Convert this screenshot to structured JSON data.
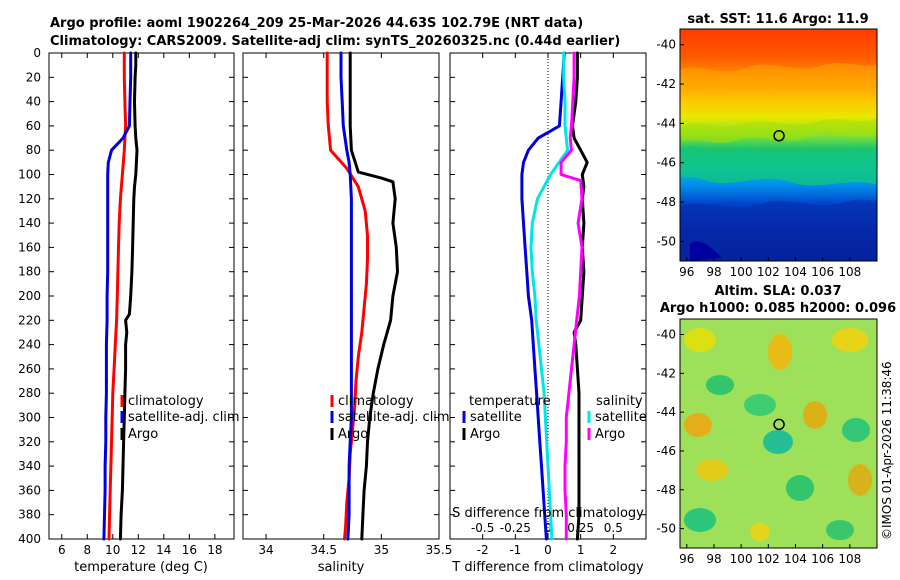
{
  "figure": {
    "title_line1": "Argo profile: aoml 1902264_209 25-Mar-2026 44.63S 102.79E (NRT data)",
    "title_line2": "Climatology: CARS2009. Satellite-adj clim: synTS_20260325.nc (0.44d earlier)",
    "copyright": "©IMOS 01-Apr-2026 11:38:46"
  },
  "colors": {
    "climatology": "#ff0000",
    "satellite": "#0000dd",
    "argo": "#000000",
    "sat_salinity": "#00e5e5",
    "argo_salinity": "#ff00ff",
    "frame": "#000000"
  },
  "legends": {
    "temperature_panel": [
      "climatology",
      "satellite-adj. clim",
      "Argo"
    ],
    "salinity_panel": [
      "climatology",
      "satellite-adj. clim",
      "Argo"
    ],
    "difference_panel": {
      "temperature_header": "temperature",
      "salinity_header": "salinity",
      "temperature_items": [
        "satellite",
        "Argo"
      ],
      "salinity_items": [
        "satellite",
        "Argo"
      ]
    }
  },
  "maps": {
    "sst_title": "sat. SST: 11.6 Argo: 11.9",
    "sla_title_line1": "Altim. SLA: 0.037",
    "sla_title_line2": "Argo h1000: 0.085 h2000: 0.096",
    "lon_ticks": [
      "96",
      "98",
      "100",
      "102",
      "104",
      "106",
      "108"
    ],
    "lat_ticks": [
      "-40",
      "-42",
      "-44",
      "-46",
      "-48",
      "-50"
    ],
    "lon_range": [
      95.5,
      110
    ],
    "lat_range": [
      -51,
      -39.2
    ],
    "float_position": {
      "lon": 102.79,
      "lat": -44.63
    }
  },
  "chart_data": [
    {
      "type": "line",
      "panel": "temperature",
      "xlabel": "temperature (deg C)",
      "ylabel": "",
      "xlim": [
        5,
        19.5
      ],
      "ylim": [
        400,
        0
      ],
      "x_ticks": [
        6,
        8,
        10,
        12,
        14,
        16,
        18
      ],
      "y_ticks": [
        0,
        20,
        40,
        60,
        80,
        100,
        120,
        140,
        160,
        180,
        200,
        220,
        240,
        260,
        280,
        300,
        320,
        340,
        360,
        380,
        400
      ],
      "series": [
        {
          "name": "climatology",
          "color": "#ff0000",
          "points": [
            [
              10.9,
              0
            ],
            [
              10.9,
              20
            ],
            [
              10.95,
              40
            ],
            [
              11.0,
              60
            ],
            [
              10.9,
              80
            ],
            [
              10.75,
              100
            ],
            [
              10.6,
              120
            ],
            [
              10.5,
              140
            ],
            [
              10.45,
              160
            ],
            [
              10.4,
              180
            ],
            [
              10.35,
              200
            ],
            [
              10.3,
              220
            ],
            [
              10.2,
              240
            ],
            [
              10.1,
              260
            ],
            [
              10.0,
              280
            ],
            [
              9.95,
              300
            ],
            [
              9.9,
              320
            ],
            [
              9.85,
              340
            ],
            [
              9.8,
              360
            ],
            [
              9.75,
              380
            ],
            [
              9.7,
              400
            ]
          ]
        },
        {
          "name": "satellite-adj. clim",
          "color": "#0000dd",
          "points": [
            [
              11.4,
              0
            ],
            [
              11.4,
              20
            ],
            [
              11.35,
              40
            ],
            [
              11.3,
              60
            ],
            [
              10.8,
              70
            ],
            [
              9.9,
              80
            ],
            [
              9.65,
              90
            ],
            [
              9.6,
              100
            ],
            [
              9.6,
              120
            ],
            [
              9.6,
              140
            ],
            [
              9.6,
              160
            ],
            [
              9.6,
              180
            ],
            [
              9.55,
              200
            ],
            [
              9.55,
              220
            ],
            [
              9.5,
              240
            ],
            [
              9.5,
              260
            ],
            [
              9.5,
              280
            ],
            [
              9.45,
              300
            ],
            [
              9.45,
              320
            ],
            [
              9.4,
              340
            ],
            [
              9.4,
              360
            ],
            [
              9.35,
              380
            ],
            [
              9.3,
              400
            ]
          ]
        },
        {
          "name": "Argo",
          "color": "#000000",
          "points": [
            [
              11.8,
              0
            ],
            [
              11.8,
              10
            ],
            [
              11.75,
              20
            ],
            [
              11.7,
              40
            ],
            [
              11.75,
              60
            ],
            [
              11.8,
              70
            ],
            [
              11.9,
              80
            ],
            [
              11.85,
              90
            ],
            [
              11.8,
              100
            ],
            [
              11.7,
              110
            ],
            [
              11.65,
              120
            ],
            [
              11.6,
              140
            ],
            [
              11.55,
              160
            ],
            [
              11.5,
              180
            ],
            [
              11.4,
              200
            ],
            [
              11.3,
              215
            ],
            [
              11.0,
              220
            ],
            [
              11.1,
              230
            ],
            [
              11.0,
              240
            ],
            [
              11.0,
              260
            ],
            [
              10.95,
              280
            ],
            [
              10.9,
              300
            ],
            [
              10.85,
              320
            ],
            [
              10.8,
              340
            ],
            [
              10.75,
              360
            ],
            [
              10.65,
              380
            ],
            [
              10.6,
              400
            ]
          ]
        }
      ]
    },
    {
      "type": "line",
      "panel": "salinity",
      "xlabel": "salinity",
      "ylabel": "",
      "xlim": [
        33.8,
        35.5
      ],
      "ylim": [
        400,
        0
      ],
      "x_ticks": [
        34,
        34.5,
        35,
        35.5
      ],
      "series": [
        {
          "name": "climatology",
          "color": "#ff0000",
          "points": [
            [
              34.53,
              0
            ],
            [
              34.53,
              20
            ],
            [
              34.53,
              40
            ],
            [
              34.54,
              60
            ],
            [
              34.56,
              80
            ],
            [
              34.7,
              95
            ],
            [
              34.8,
              110
            ],
            [
              34.86,
              130
            ],
            [
              34.88,
              150
            ],
            [
              34.88,
              170
            ],
            [
              34.87,
              190
            ],
            [
              34.85,
              210
            ],
            [
              34.83,
              230
            ],
            [
              34.8,
              250
            ],
            [
              34.78,
              270
            ],
            [
              34.77,
              290
            ],
            [
              34.75,
              310
            ],
            [
              34.73,
              330
            ],
            [
              34.72,
              350
            ],
            [
              34.7,
              370
            ],
            [
              34.69,
              390
            ],
            [
              34.68,
              400
            ]
          ]
        },
        {
          "name": "satellite-adj. clim",
          "color": "#0000dd",
          "points": [
            [
              34.65,
              0
            ],
            [
              34.65,
              20
            ],
            [
              34.66,
              40
            ],
            [
              34.67,
              60
            ],
            [
              34.7,
              80
            ],
            [
              34.72,
              90
            ],
            [
              34.73,
              100
            ],
            [
              34.74,
              120
            ],
            [
              34.74,
              140
            ],
            [
              34.74,
              160
            ],
            [
              34.74,
              180
            ],
            [
              34.74,
              200
            ],
            [
              34.74,
              220
            ],
            [
              34.74,
              240
            ],
            [
              34.74,
              260
            ],
            [
              34.74,
              280
            ],
            [
              34.74,
              300
            ],
            [
              34.73,
              320
            ],
            [
              34.72,
              340
            ],
            [
              34.72,
              360
            ],
            [
              34.72,
              380
            ],
            [
              34.71,
              400
            ]
          ]
        },
        {
          "name": "Argo",
          "color": "#000000",
          "points": [
            [
              34.73,
              0
            ],
            [
              34.73,
              20
            ],
            [
              34.73,
              40
            ],
            [
              34.73,
              60
            ],
            [
              34.74,
              80
            ],
            [
              34.8,
              98
            ],
            [
              35.0,
              103
            ],
            [
              35.1,
              106
            ],
            [
              35.12,
              120
            ],
            [
              35.1,
              140
            ],
            [
              35.13,
              160
            ],
            [
              35.14,
              180
            ],
            [
              35.1,
              200
            ],
            [
              35.08,
              220
            ],
            [
              35.02,
              240
            ],
            [
              34.97,
              260
            ],
            [
              34.93,
              280
            ],
            [
              34.9,
              300
            ],
            [
              34.88,
              320
            ],
            [
              34.87,
              340
            ],
            [
              34.85,
              360
            ],
            [
              34.84,
              380
            ],
            [
              34.83,
              400
            ]
          ]
        }
      ]
    },
    {
      "type": "line",
      "panel": "difference",
      "xlabel": "T difference from climatology",
      "x2label": "S difference from climatology",
      "xlim": [
        -3,
        3
      ],
      "x2lim": [
        -0.75,
        0.75
      ],
      "ylim": [
        400,
        0
      ],
      "x_ticks": [
        -2,
        -1,
        0,
        1,
        2
      ],
      "x2_ticks": [
        -0.5,
        -0.25,
        0,
        0.25,
        0.5
      ],
      "series": [
        {
          "name": "satellite (temperature)",
          "color": "#0000dd",
          "axis": "T",
          "points": [
            [
              0.5,
              0
            ],
            [
              0.45,
              20
            ],
            [
              0.4,
              40
            ],
            [
              0.35,
              60
            ],
            [
              -0.3,
              70
            ],
            [
              -0.6,
              80
            ],
            [
              -0.75,
              90
            ],
            [
              -0.8,
              100
            ],
            [
              -0.8,
              120
            ],
            [
              -0.75,
              140
            ],
            [
              -0.7,
              160
            ],
            [
              -0.65,
              180
            ],
            [
              -0.6,
              200
            ],
            [
              -0.5,
              220
            ],
            [
              -0.45,
              240
            ],
            [
              -0.4,
              260
            ],
            [
              -0.35,
              280
            ],
            [
              -0.3,
              300
            ],
            [
              -0.25,
              320
            ],
            [
              -0.2,
              340
            ],
            [
              -0.15,
              360
            ],
            [
              -0.1,
              380
            ],
            [
              -0.05,
              400
            ]
          ]
        },
        {
          "name": "Argo (temperature)",
          "color": "#000000",
          "axis": "T",
          "points": [
            [
              0.9,
              0
            ],
            [
              0.9,
              20
            ],
            [
              0.85,
              40
            ],
            [
              0.75,
              60
            ],
            [
              0.8,
              70
            ],
            [
              1.0,
              80
            ],
            [
              1.2,
              90
            ],
            [
              1.05,
              100
            ],
            [
              1.1,
              110
            ],
            [
              1.05,
              120
            ],
            [
              1.1,
              140
            ],
            [
              1.05,
              160
            ],
            [
              1.1,
              180
            ],
            [
              1.05,
              200
            ],
            [
              1.0,
              220
            ],
            [
              0.8,
              230
            ],
            [
              0.85,
              240
            ],
            [
              0.9,
              260
            ],
            [
              0.95,
              280
            ],
            [
              0.95,
              300
            ],
            [
              0.95,
              320
            ],
            [
              0.95,
              340
            ],
            [
              0.95,
              360
            ],
            [
              0.95,
              380
            ],
            [
              0.9,
              400
            ]
          ]
        },
        {
          "name": "satellite (salinity)",
          "color": "#00e5e5",
          "axis": "S",
          "points": [
            [
              0.12,
              0
            ],
            [
              0.12,
              20
            ],
            [
              0.13,
              40
            ],
            [
              0.13,
              60
            ],
            [
              0.15,
              80
            ],
            [
              0.02,
              100
            ],
            [
              -0.08,
              120
            ],
            [
              -0.12,
              140
            ],
            [
              -0.13,
              160
            ],
            [
              -0.12,
              180
            ],
            [
              -0.1,
              200
            ],
            [
              -0.09,
              220
            ],
            [
              -0.07,
              240
            ],
            [
              -0.05,
              260
            ],
            [
              -0.03,
              280
            ],
            [
              -0.02,
              300
            ],
            [
              -0.01,
              320
            ],
            [
              0.0,
              340
            ],
            [
              0.01,
              360
            ],
            [
              0.02,
              380
            ],
            [
              0.03,
              400
            ]
          ]
        },
        {
          "name": "Argo (salinity)",
          "color": "#ff00ff",
          "axis": "S",
          "points": [
            [
              0.2,
              0
            ],
            [
              0.2,
              20
            ],
            [
              0.19,
              40
            ],
            [
              0.18,
              60
            ],
            [
              0.17,
              70
            ],
            [
              0.18,
              80
            ],
            [
              0.1,
              90
            ],
            [
              0.1,
              100
            ],
            [
              0.25,
              105
            ],
            [
              0.26,
              120
            ],
            [
              0.23,
              140
            ],
            [
              0.26,
              160
            ],
            [
              0.25,
              180
            ],
            [
              0.24,
              200
            ],
            [
              0.22,
              220
            ],
            [
              0.2,
              240
            ],
            [
              0.18,
              260
            ],
            [
              0.16,
              280
            ],
            [
              0.14,
              300
            ],
            [
              0.14,
              320
            ],
            [
              0.13,
              340
            ],
            [
              0.13,
              360
            ],
            [
              0.14,
              380
            ],
            [
              0.14,
              400
            ]
          ]
        }
      ]
    }
  ]
}
